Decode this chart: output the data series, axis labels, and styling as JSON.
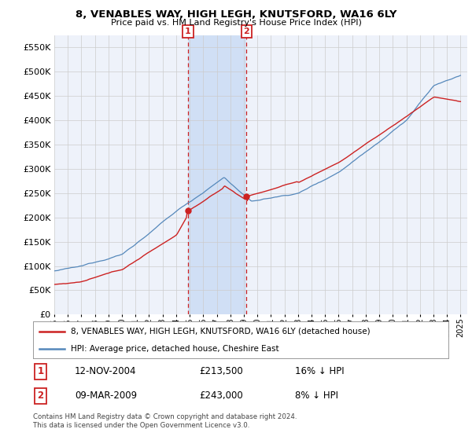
{
  "title": "8, VENABLES WAY, HIGH LEGH, KNUTSFORD, WA16 6LY",
  "subtitle": "Price paid vs. HM Land Registry's House Price Index (HPI)",
  "legend_line1": "8, VENABLES WAY, HIGH LEGH, KNUTSFORD, WA16 6LY (detached house)",
  "legend_line2": "HPI: Average price, detached house, Cheshire East",
  "sale1_label": "1",
  "sale1_date": "12-NOV-2004",
  "sale1_price": "£213,500",
  "sale1_hpi": "16% ↓ HPI",
  "sale1_year": 2004.87,
  "sale1_value": 213500,
  "sale2_label": "2",
  "sale2_date": "09-MAR-2009",
  "sale2_price": "£243,000",
  "sale2_hpi": "8% ↓ HPI",
  "sale2_year": 2009.19,
  "sale2_value": 243000,
  "footer": "Contains HM Land Registry data © Crown copyright and database right 2024.\nThis data is licensed under the Open Government Licence v3.0.",
  "hpi_color": "#5588bb",
  "price_color": "#cc2222",
  "background_color": "#ffffff",
  "plot_bg_color": "#eef2fa",
  "grid_color": "#cccccc",
  "highlight_color": "#d0dff5",
  "ylim_min": 0,
  "ylim_max": 575000,
  "xmin": 1995,
  "xmax": 2025.5,
  "yticks": [
    0,
    50000,
    100000,
    150000,
    200000,
    250000,
    300000,
    350000,
    400000,
    450000,
    500000,
    550000
  ]
}
